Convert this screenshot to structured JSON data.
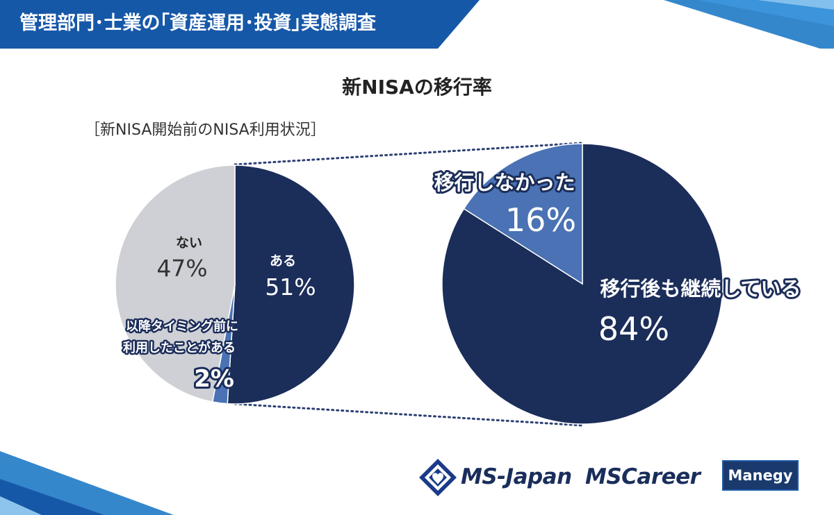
{
  "header": {
    "title": "管理部門･士業の｢資産運用･投資｣実態調査"
  },
  "colors": {
    "navy": "#1b2d59",
    "mid_blue": "#4a72b4",
    "gray": "#cfd0d5",
    "header_blue": "#1658a8"
  },
  "chart_title": "新NISAの移行率",
  "left_subtitle": "［新NISA開始前のNISA利用状況］",
  "chart_data": [
    {
      "type": "pie",
      "title": "［新NISA開始前のNISA利用状況］",
      "slices": [
        {
          "label": "ある",
          "value": 51,
          "display": "51%",
          "color": "#1b2d59"
        },
        {
          "label_lines": [
            "以降タイミング前に",
            "利用したことがある"
          ],
          "value": 2,
          "display": "2%",
          "color": "#4a72b4"
        },
        {
          "label": "ない",
          "value": 47,
          "display": "47%",
          "color": "#cfd0d5"
        }
      ]
    },
    {
      "type": "pie",
      "slices": [
        {
          "label": "移行後も継続している",
          "value": 84,
          "display": "84%",
          "color": "#1b2d59"
        },
        {
          "label": "移行しなかった",
          "value": 16,
          "display": "16%",
          "color": "#4a72b4"
        }
      ]
    }
  ],
  "logos": {
    "ms_japan": "MS-Japan",
    "ms_career": "MSCareer",
    "manegy": "Manegy"
  }
}
